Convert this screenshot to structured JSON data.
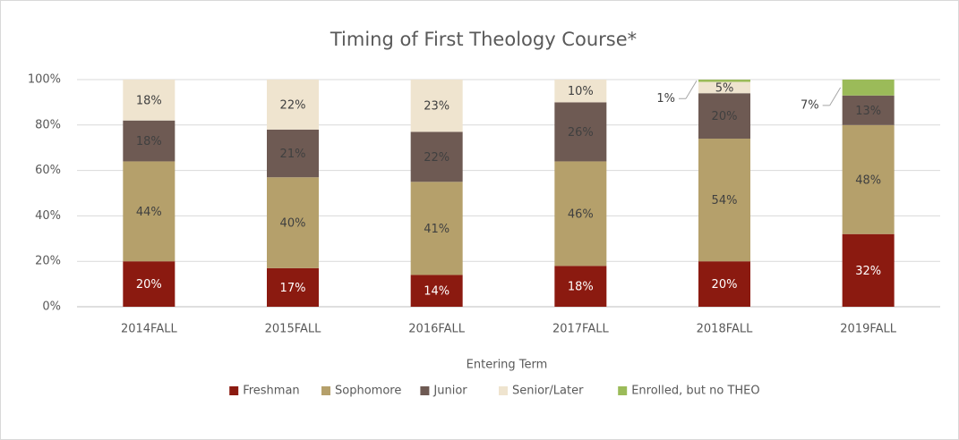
{
  "chart_data": {
    "type": "stacked-bar",
    "title": "Timing of First Theology Course*",
    "x_label": "Entering Term",
    "categories": [
      "2014FALL",
      "2015FALL",
      "2016FALL",
      "2017FALL",
      "2018FALL",
      "2019FALL"
    ],
    "series": [
      {
        "name": "Freshman",
        "color": "#8b1a10",
        "values": [
          20,
          17,
          14,
          18,
          20,
          32
        ],
        "value_labels": [
          "20%",
          "17%",
          "14%",
          "18%",
          "20%",
          "32%"
        ]
      },
      {
        "name": "Sophomore",
        "color": "#b5a06b",
        "values": [
          44,
          40,
          41,
          46,
          54,
          48
        ],
        "value_labels": [
          "44%",
          "40%",
          "41%",
          "46%",
          "54%",
          "48%"
        ]
      },
      {
        "name": "Junior",
        "color": "#6e5a53",
        "values": [
          18,
          21,
          22,
          26,
          20,
          13
        ],
        "value_labels": [
          "18%",
          "21%",
          "22%",
          "26%",
          "20%",
          "13%"
        ]
      },
      {
        "name": "Senior/Later",
        "color": "#efe4cf",
        "values": [
          18,
          22,
          23,
          10,
          5,
          0
        ],
        "value_labels": [
          "18%",
          "22%",
          "23%",
          "10%",
          "5%",
          null
        ]
      },
      {
        "name": "Enrolled, but no THEO",
        "color": "#9bbb59",
        "values": [
          0,
          0,
          0,
          1,
          1,
          7
        ],
        "value_labels": [
          null,
          null,
          null,
          null,
          "1%",
          "7%"
        ]
      }
    ],
    "ylim": [
      0,
      100
    ],
    "yticks": [
      {
        "value": 0,
        "label": "0%"
      },
      {
        "value": 20,
        "label": "20%"
      },
      {
        "value": 40,
        "label": "40%"
      },
      {
        "value": 60,
        "label": "60%"
      },
      {
        "value": 80,
        "label": "80%"
      },
      {
        "value": 100,
        "label": "100%"
      }
    ],
    "grid": true,
    "legend": "bottom"
  }
}
